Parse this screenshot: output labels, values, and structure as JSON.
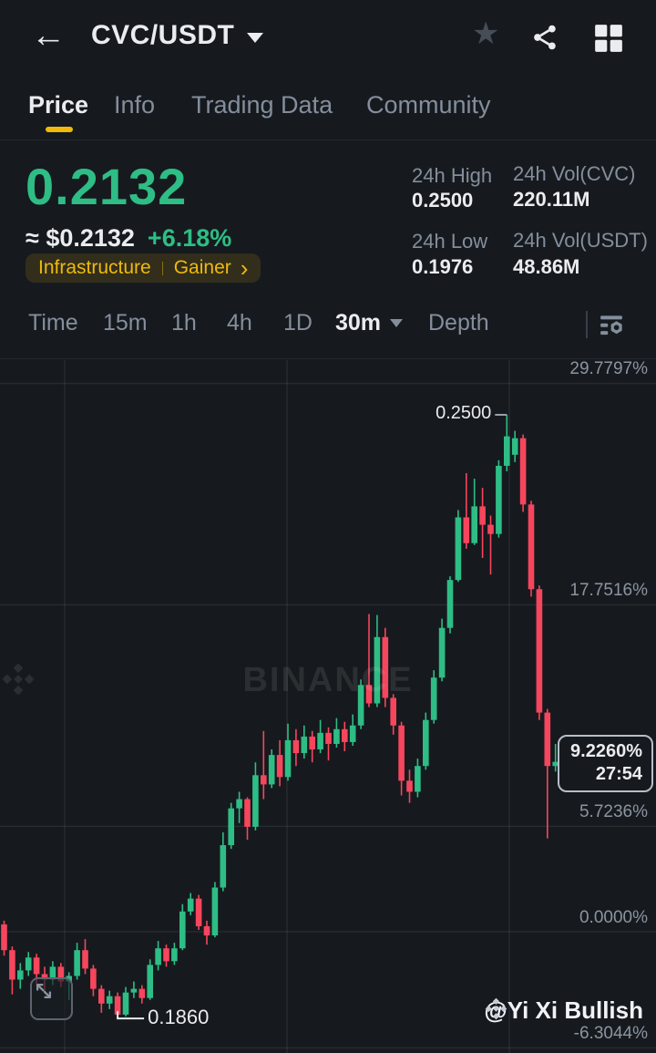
{
  "header": {
    "title": "CVC/USDT"
  },
  "tabs": [
    {
      "label": "Price",
      "active": true
    },
    {
      "label": "Info",
      "active": false
    },
    {
      "label": "Trading Data",
      "active": false
    },
    {
      "label": "Community",
      "active": false
    }
  ],
  "price_section": {
    "last_price": "0.2132",
    "fiat_approx": "≈ $0.2132",
    "change_24h": "+6.18%",
    "tags": {
      "category": "Infrastructure",
      "badge": "Gainer",
      "chevron": "›"
    }
  },
  "stats": {
    "high_label": "24h High",
    "high_value": "0.2500",
    "low_label": "24h Low",
    "low_value": "0.1976",
    "vol_base_label": "24h Vol(CVC)",
    "vol_base_value": "220.11M",
    "vol_quote_label": "24h Vol(USDT)",
    "vol_quote_value": "48.86M"
  },
  "toolbar": {
    "items": [
      {
        "label": "Time"
      },
      {
        "label": "15m"
      },
      {
        "label": "1h"
      },
      {
        "label": "4h"
      },
      {
        "label": "1D"
      }
    ],
    "selected_interval": "30m",
    "depth_label": "Depth"
  },
  "chart_data": {
    "type": "candlestick",
    "interval": "30m",
    "unit": "percent-change",
    "up_color": "#2EBD85",
    "down_color": "#F6465D",
    "grid": true,
    "legend_position": "none",
    "y_axis": {
      "side": "right",
      "labels": [
        "29.7797%",
        "17.7516%",
        "5.7236%",
        "0.0000%",
        "-6.3044%"
      ],
      "values": [
        29.7797,
        17.7516,
        5.7236,
        0.0,
        -6.3044
      ]
    },
    "annotations": {
      "high": {
        "label": "0.2500",
        "candle_index": 62
      },
      "low": {
        "label": "0.1860",
        "candle_index": 14
      },
      "last": {
        "percent": "9.2260%",
        "time": "27:54",
        "value": 9.226
      }
    },
    "watermark": "BINANCE",
    "credit": "@Yi Xi Bullish",
    "candles": [
      [
        0.4,
        0.6,
        -1.3,
        -1.0
      ],
      [
        -1.0,
        -0.8,
        -3.4,
        -2.6
      ],
      [
        -2.6,
        -1.7,
        -3.1,
        -2.1
      ],
      [
        -2.1,
        -1.1,
        -2.4,
        -1.4
      ],
      [
        -1.4,
        -1.2,
        -2.9,
        -2.3
      ],
      [
        -2.3,
        -1.9,
        -3.2,
        -2.6
      ],
      [
        -2.6,
        -1.6,
        -2.9,
        -1.9
      ],
      [
        -1.9,
        -1.7,
        -3.0,
        -2.7
      ],
      [
        -2.7,
        -2.2,
        -3.7,
        -2.4
      ],
      [
        -2.4,
        -0.6,
        -2.6,
        -1.0
      ],
      [
        -1.0,
        -0.4,
        -2.3,
        -2.0
      ],
      [
        -2.0,
        -1.8,
        -3.5,
        -3.1
      ],
      [
        -3.1,
        -2.9,
        -4.4,
        -3.9
      ],
      [
        -3.9,
        -3.2,
        -4.2,
        -3.5
      ],
      [
        -3.5,
        -3.3,
        -4.71,
        -4.5
      ],
      [
        -4.5,
        -3.0,
        -4.6,
        -3.3
      ],
      [
        -3.3,
        -2.7,
        -3.6,
        -3.1
      ],
      [
        -3.1,
        -2.9,
        -3.9,
        -3.6
      ],
      [
        -3.6,
        -1.5,
        -3.7,
        -1.8
      ],
      [
        -1.8,
        -0.5,
        -2.1,
        -0.9
      ],
      [
        -0.9,
        -0.7,
        -1.9,
        -1.6
      ],
      [
        -1.6,
        -0.6,
        -1.8,
        -0.9
      ],
      [
        -0.9,
        1.5,
        -1.0,
        1.1
      ],
      [
        1.1,
        2.1,
        0.9,
        1.8
      ],
      [
        1.8,
        2.0,
        0.1,
        0.3
      ],
      [
        0.3,
        0.6,
        -0.7,
        -0.2
      ],
      [
        -0.2,
        2.7,
        -0.3,
        2.4
      ],
      [
        2.4,
        5.4,
        2.2,
        4.7
      ],
      [
        4.7,
        7.0,
        4.5,
        6.7
      ],
      [
        6.7,
        7.6,
        5.9,
        7.2
      ],
      [
        7.2,
        7.3,
        5.0,
        5.7
      ],
      [
        5.7,
        9.2,
        5.5,
        8.5
      ],
      [
        8.5,
        10.9,
        7.2,
        8.0
      ],
      [
        8.0,
        9.9,
        7.8,
        9.6
      ],
      [
        9.6,
        10.4,
        7.9,
        8.4
      ],
      [
        8.4,
        11.3,
        8.2,
        10.4
      ],
      [
        10.4,
        11.0,
        9.0,
        9.7
      ],
      [
        9.7,
        11.2,
        9.4,
        10.6
      ],
      [
        10.6,
        10.9,
        9.2,
        9.9
      ],
      [
        9.9,
        11.5,
        9.7,
        10.8
      ],
      [
        10.8,
        11.1,
        9.3,
        10.2
      ],
      [
        10.2,
        11.6,
        10.0,
        11.0
      ],
      [
        11.0,
        11.4,
        9.8,
        10.3
      ],
      [
        10.3,
        11.8,
        10.1,
        11.2
      ],
      [
        11.2,
        13.7,
        11.0,
        13.4
      ],
      [
        13.4,
        17.25,
        12.2,
        12.4
      ],
      [
        12.4,
        17.2,
        12.2,
        16.0
      ],
      [
        16.0,
        16.5,
        12.2,
        12.7
      ],
      [
        12.7,
        12.9,
        10.7,
        11.2
      ],
      [
        11.2,
        11.4,
        7.4,
        8.2
      ],
      [
        8.2,
        8.8,
        7.0,
        7.6
      ],
      [
        7.6,
        9.4,
        7.3,
        9.0
      ],
      [
        9.0,
        11.9,
        8.8,
        11.5
      ],
      [
        11.5,
        14.2,
        11.3,
        13.8
      ],
      [
        13.8,
        17.0,
        13.6,
        16.5
      ],
      [
        16.5,
        19.3,
        16.2,
        19.1
      ],
      [
        19.1,
        22.9,
        19.0,
        22.5
      ],
      [
        22.5,
        24.9,
        20.8,
        21.1
      ],
      [
        21.1,
        24.6,
        21.0,
        23.1
      ],
      [
        23.1,
        24.1,
        20.3,
        22.1
      ],
      [
        22.1,
        22.6,
        19.4,
        21.6
      ],
      [
        21.6,
        25.6,
        21.4,
        25.3
      ],
      [
        25.3,
        28.07,
        25.0,
        26.9
      ],
      [
        25.9,
        27.2,
        25.5,
        26.8
      ],
      [
        26.8,
        27.0,
        22.8,
        23.2
      ],
      [
        23.2,
        23.4,
        18.2,
        18.6
      ],
      [
        18.6,
        18.8,
        11.5,
        11.9
      ],
      [
        11.9,
        12.1,
        5.07,
        9.0
      ],
      [
        9.0,
        10.2,
        8.7,
        9.226
      ]
    ]
  }
}
